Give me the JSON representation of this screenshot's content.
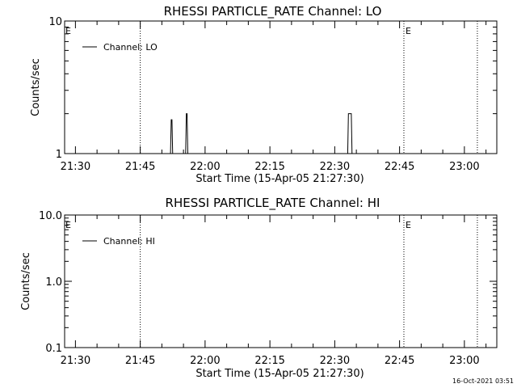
{
  "chart_data": [
    {
      "type": "line",
      "title": "RHESSI PARTICLE_RATE Channel: LO",
      "xlabel": "Start Time (15-Apr-05 21:27:30)",
      "ylabel": "Counts/sec",
      "yscale": "log",
      "ylim": [
        1,
        10
      ],
      "xlim": [
        "21:27:30",
        "23:07:30"
      ],
      "x_tick_labels": [
        "21:30",
        "21:45",
        "22:00",
        "22:15",
        "22:30",
        "22:45",
        "23:00"
      ],
      "y_tick_labels": [
        "1",
        "10"
      ],
      "legend": {
        "position": "top-left",
        "entries": [
          "Channel: LO"
        ]
      },
      "markers": [
        {
          "time": "21:45",
          "label": ""
        },
        {
          "time": "22:46",
          "label": "E"
        },
        {
          "time": "23:03",
          "label": ""
        }
      ],
      "edge_marker_label": "E",
      "series": [
        {
          "name": "Channel: LO",
          "x": [
            "21:52:00",
            "21:52:10",
            "21:52:20",
            "21:52:30",
            "21:55:30",
            "21:55:40",
            "21:55:50",
            "21:56:00",
            "22:33:00",
            "22:33:10",
            "22:33:50",
            "22:34:00"
          ],
          "y": [
            1,
            1.8,
            1.8,
            1,
            1,
            2,
            2,
            1,
            1,
            2,
            2,
            1
          ]
        }
      ]
    },
    {
      "type": "line",
      "title": "RHESSI PARTICLE_RATE Channel: HI",
      "xlabel": "Start Time (15-Apr-05 21:27:30)",
      "ylabel": "Counts/sec",
      "yscale": "log",
      "ylim": [
        0.1,
        10
      ],
      "xlim": [
        "21:27:30",
        "23:07:30"
      ],
      "x_tick_labels": [
        "21:30",
        "21:45",
        "22:00",
        "22:15",
        "22:30",
        "22:45",
        "23:00"
      ],
      "y_tick_labels": [
        "0.1",
        "1.0",
        "10.0"
      ],
      "legend": {
        "position": "top-left",
        "entries": [
          "Channel: HI"
        ]
      },
      "markers": [
        {
          "time": "21:45",
          "label": ""
        },
        {
          "time": "22:46",
          "label": "E"
        },
        {
          "time": "23:03",
          "label": ""
        }
      ],
      "edge_marker_label": "E",
      "series": [
        {
          "name": "Channel: HI",
          "x": [],
          "y": []
        }
      ]
    }
  ],
  "footer_timestamp": "16-Oct-2021 03:51"
}
